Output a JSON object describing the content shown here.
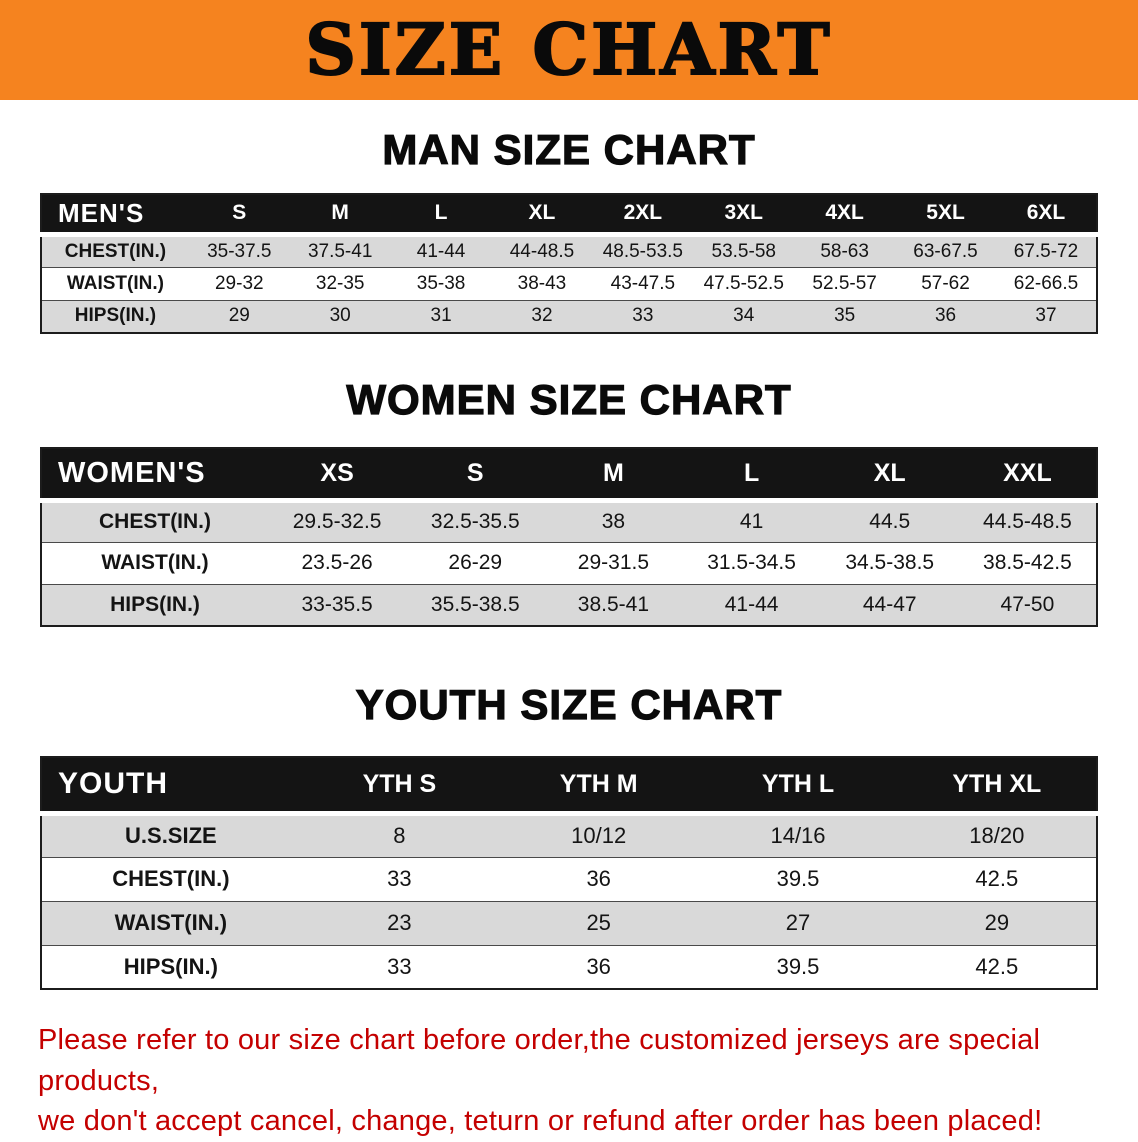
{
  "banner": {
    "title": "SIZE CHART"
  },
  "colors": {
    "banner_bg": "#F5831F",
    "table_header_bg": "#141414",
    "row_alt_bg": "#D9D9D9",
    "footer_text": "#C40000"
  },
  "men": {
    "heading": "MAN SIZE CHART",
    "header_label": "MEN'S",
    "sizes": [
      "S",
      "M",
      "L",
      "XL",
      "2XL",
      "3XL",
      "4XL",
      "5XL",
      "6XL"
    ],
    "rows": [
      {
        "label": "CHEST(IN.)",
        "values": [
          "35-37.5",
          "37.5-41",
          "41-44",
          "44-48.5",
          "48.5-53.5",
          "53.5-58",
          "58-63",
          "63-67.5",
          "67.5-72"
        ]
      },
      {
        "label": "WAIST(IN.)",
        "values": [
          "29-32",
          "32-35",
          "35-38",
          "38-43",
          "43-47.5",
          "47.5-52.5",
          "52.5-57",
          "57-62",
          "62-66.5"
        ]
      },
      {
        "label": "HIPS(IN.)",
        "values": [
          "29",
          "30",
          "31",
          "32",
          "33",
          "34",
          "35",
          "36",
          "37"
        ]
      }
    ]
  },
  "women": {
    "heading": "WOMEN SIZE CHART",
    "header_label": "WOMEN'S",
    "sizes": [
      "XS",
      "S",
      "M",
      "L",
      "XL",
      "XXL"
    ],
    "rows": [
      {
        "label": "CHEST(IN.)",
        "values": [
          "29.5-32.5",
          "32.5-35.5",
          "38",
          "41",
          "44.5",
          "44.5-48.5"
        ]
      },
      {
        "label": "WAIST(IN.)",
        "values": [
          "23.5-26",
          "26-29",
          "29-31.5",
          "31.5-34.5",
          "34.5-38.5",
          "38.5-42.5"
        ]
      },
      {
        "label": "HIPS(IN.)",
        "values": [
          "33-35.5",
          "35.5-38.5",
          "38.5-41",
          "41-44",
          "44-47",
          "47-50"
        ]
      }
    ]
  },
  "youth": {
    "heading": "YOUTH SIZE CHART",
    "header_label": "YOUTH",
    "sizes": [
      "YTH S",
      "YTH M",
      "YTH L",
      "YTH XL"
    ],
    "rows": [
      {
        "label": "U.S.SIZE",
        "values": [
          "8",
          "10/12",
          "14/16",
          "18/20"
        ]
      },
      {
        "label": "CHEST(IN.)",
        "values": [
          "33",
          "36",
          "39.5",
          "42.5"
        ]
      },
      {
        "label": "WAIST(IN.)",
        "values": [
          "23",
          "25",
          "27",
          "29"
        ]
      },
      {
        "label": "HIPS(IN.)",
        "values": [
          "33",
          "36",
          "39.5",
          "42.5"
        ]
      }
    ]
  },
  "footer": {
    "line1": "Please refer to our size chart before order,the customized jerseys are special products,",
    "line2": "we don't accept cancel, change, teturn or refund after order has been placed!"
  }
}
